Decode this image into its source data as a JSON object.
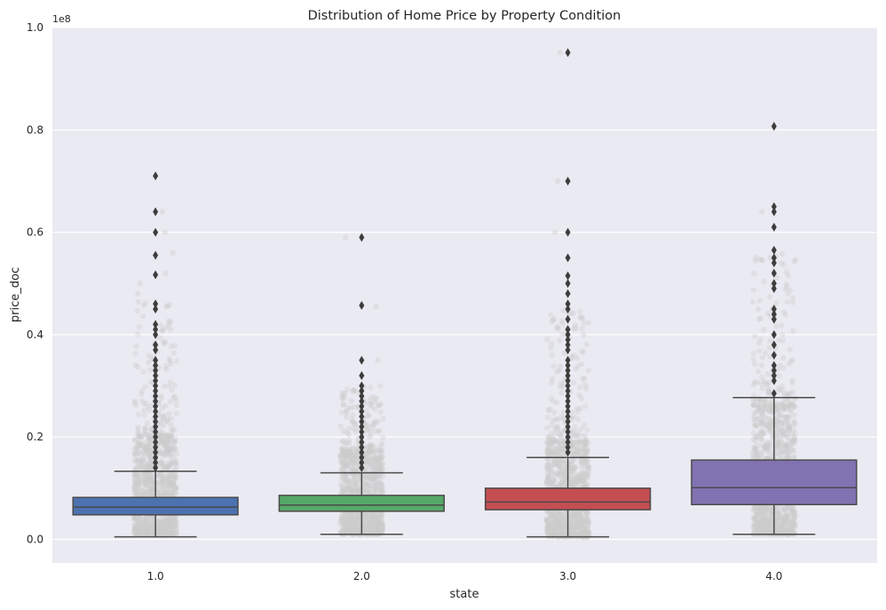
{
  "chart_data": {
    "type": "box",
    "title": "Distribution of Home Price by Property Condition",
    "xlabel": "state",
    "ylabel": "price_doc",
    "y_offset_label": "1e8",
    "y_multiplier": 100000000,
    "ylim": [
      -0.046,
      1.0
    ],
    "yticks": [
      0.0,
      0.2,
      0.4,
      0.6,
      0.8,
      1.0
    ],
    "ytick_labels": [
      "0.0",
      "0.2",
      "0.4",
      "0.6",
      "0.8",
      "1.0"
    ],
    "categories": [
      "1.0",
      "2.0",
      "3.0",
      "4.0"
    ],
    "grid": true,
    "background": "#eaeaf2",
    "boxes": [
      {
        "category": "1.0",
        "color": "#4c72b0",
        "whisker_low": 0.005,
        "q1": 0.048,
        "median": 0.063,
        "q3": 0.082,
        "whisker_high": 0.133,
        "outliers": [
          0.71,
          0.64,
          0.6,
          0.555,
          0.517,
          0.46,
          0.45,
          0.42,
          0.41,
          0.4,
          0.38,
          0.37,
          0.35,
          0.34,
          0.33,
          0.32,
          0.31,
          0.3,
          0.29,
          0.28,
          0.27,
          0.26,
          0.25,
          0.24,
          0.23,
          0.22,
          0.21,
          0.2,
          0.19,
          0.18,
          0.17,
          0.16,
          0.15,
          0.14
        ]
      },
      {
        "category": "2.0",
        "color": "#55a868",
        "whisker_low": 0.01,
        "q1": 0.055,
        "median": 0.067,
        "q3": 0.086,
        "whisker_high": 0.13,
        "outliers": [
          0.59,
          0.457,
          0.35,
          0.32,
          0.3,
          0.29,
          0.28,
          0.27,
          0.26,
          0.25,
          0.24,
          0.23,
          0.22,
          0.21,
          0.2,
          0.19,
          0.18,
          0.17,
          0.16,
          0.15,
          0.14
        ]
      },
      {
        "category": "3.0",
        "color": "#c44e52",
        "whisker_low": 0.005,
        "q1": 0.058,
        "median": 0.073,
        "q3": 0.1,
        "whisker_high": 0.16,
        "outliers": [
          0.951,
          0.7,
          0.6,
          0.55,
          0.515,
          0.5,
          0.48,
          0.46,
          0.45,
          0.43,
          0.41,
          0.4,
          0.39,
          0.38,
          0.37,
          0.35,
          0.34,
          0.33,
          0.32,
          0.31,
          0.3,
          0.29,
          0.28,
          0.27,
          0.26,
          0.25,
          0.24,
          0.23,
          0.22,
          0.21,
          0.2,
          0.19,
          0.18,
          0.17
        ]
      },
      {
        "category": "4.0",
        "color": "#8172b2",
        "whisker_low": 0.01,
        "q1": 0.068,
        "median": 0.101,
        "q3": 0.155,
        "whisker_high": 0.277,
        "outliers": [
          0.807,
          0.65,
          0.64,
          0.61,
          0.565,
          0.55,
          0.54,
          0.52,
          0.5,
          0.49,
          0.45,
          0.44,
          0.43,
          0.4,
          0.38,
          0.36,
          0.34,
          0.33,
          0.32,
          0.31,
          0.285
        ]
      }
    ],
    "strip_points": {
      "color": "#cccccc",
      "bands": [
        {
          "category": "1.0",
          "dense_low": 0.01,
          "dense_high": 0.2,
          "sparse_high": 0.47,
          "top_points": [
            0.64,
            0.6,
            0.56,
            0.52,
            0.5,
            0.48
          ]
        },
        {
          "category": "2.0",
          "dense_low": 0.01,
          "dense_high": 0.17,
          "sparse_high": 0.3,
          "top_points": [
            0.59,
            0.455,
            0.35
          ]
        },
        {
          "category": "3.0",
          "dense_low": 0.005,
          "dense_high": 0.19,
          "sparse_high": 0.45,
          "top_points": [
            0.951,
            0.7,
            0.6
          ]
        },
        {
          "category": "4.0",
          "dense_low": 0.01,
          "dense_high": 0.26,
          "sparse_high": 0.56,
          "top_points": [
            0.64,
            0.55,
            0.45
          ]
        }
      ]
    }
  }
}
